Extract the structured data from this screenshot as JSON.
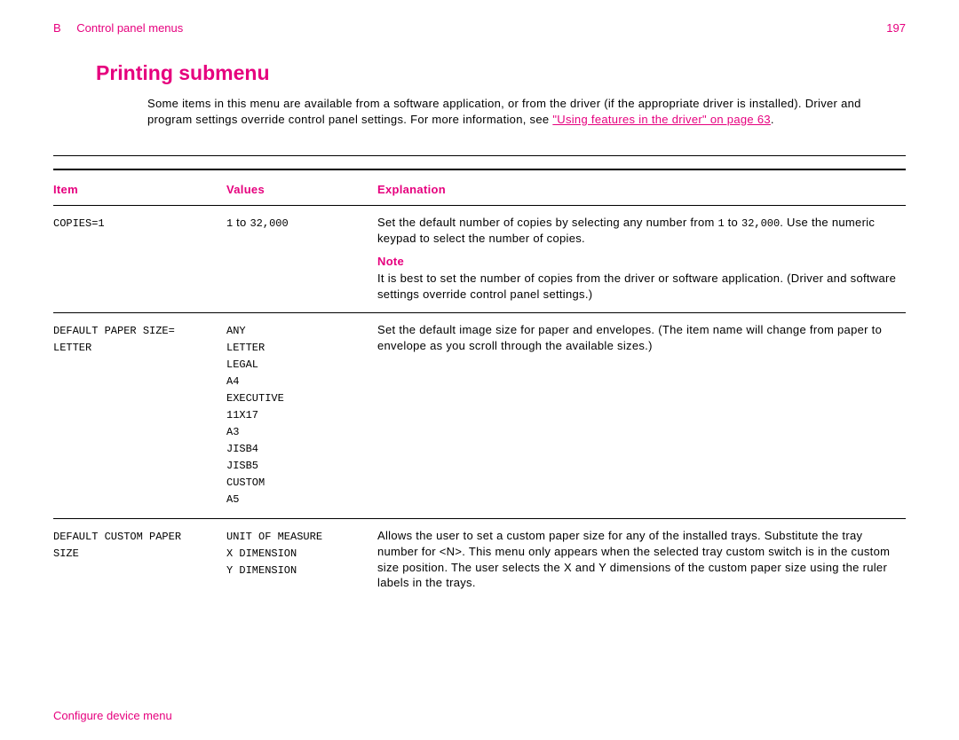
{
  "header": {
    "section_letter": "B",
    "section_title": "Control panel menus",
    "page_number": "197"
  },
  "heading": "Printing submenu",
  "intro": {
    "text1": "Some items in this menu are available from a software application, or from the driver (if the appropriate driver is installed). Driver and program settings override control panel settings. For more information, see ",
    "link1": "\"Using features in the driver\" on page 63",
    "text2": "."
  },
  "table": {
    "headers": {
      "item": "Item",
      "values": "Values",
      "explanation": "Explanation"
    },
    "rows": [
      {
        "item": "COPIES=1",
        "values_prefix_mono": "1",
        "values_mid": " to ",
        "values_suffix_mono": "32,000",
        "explanation_p1a": "Set the default number of copies by selecting any number from ",
        "explanation_p1_mono1": "1",
        "explanation_p1b": " to ",
        "explanation_p1_mono2": "32,000",
        "explanation_p1c": ". Use the numeric keypad to select the number of copies.",
        "note_label": "Note",
        "note_text": "It is best to set the number of copies from the driver or software application. (Driver and software settings override control panel settings.)"
      },
      {
        "item": "DEFAULT PAPER SIZE=\nLETTER",
        "values": "ANY\nLETTER\nLEGAL\nA4\nEXECUTIVE\n11X17\nA3\nJISB4\nJISB5\nCUSTOM\nA5",
        "explanation": "Set the default image size for paper and envelopes. (The item name will change from paper to envelope as you scroll through the available sizes.)"
      },
      {
        "item": "DEFAULT CUSTOM PAPER\nSIZE",
        "values": "UNIT OF MEASURE\nX DIMENSION\nY DIMENSION",
        "explanation": "Allows the user to set a custom paper size for any of the installed trays. Substitute the tray number for <N>. This menu only appears when the selected tray custom switch is in the custom size position. The user selects the X and Y dimensions of the custom paper size using the ruler labels in the trays."
      }
    ]
  },
  "footer": "Configure device menu",
  "colors": {
    "accent": "#e6007e",
    "text": "#000000",
    "background": "#ffffff"
  }
}
